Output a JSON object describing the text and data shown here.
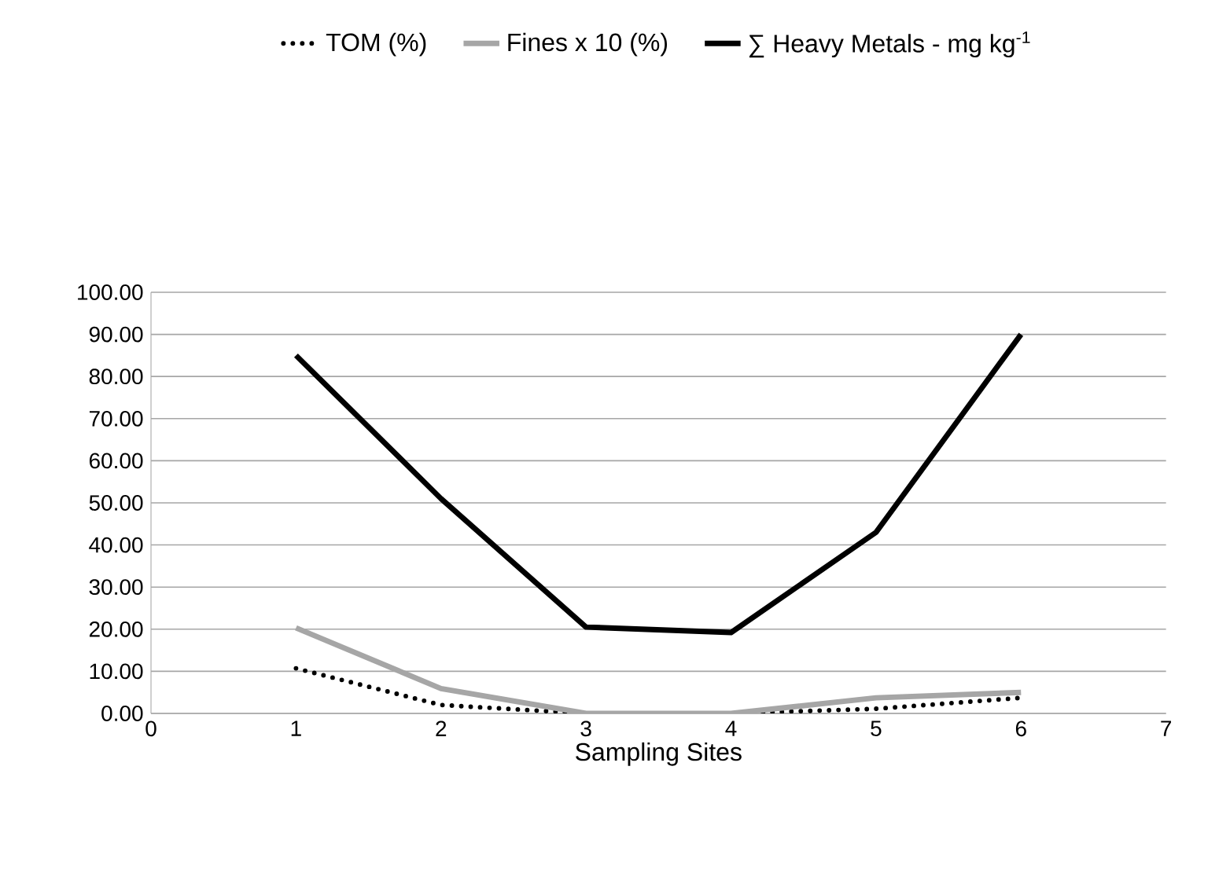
{
  "chart_data": {
    "type": "line",
    "xlabel": "Sampling Sites",
    "x": [
      1,
      2,
      3,
      4,
      5,
      6
    ],
    "series": [
      {
        "name": "TOM (%)",
        "color": "#000000",
        "line_style": "dotted",
        "values": [
          10.7,
          2.0,
          0,
          0,
          1.1,
          3.7
        ]
      },
      {
        "name": "Fines x 10 (%)",
        "color": "#a6a6a6",
        "line_style": "solid",
        "values": [
          20.3,
          5.9,
          0,
          0,
          3.7,
          5.0
        ]
      },
      {
        "name": "∑ Heavy Metals - mg kg$^{-1}$",
        "color": "#000000",
        "line_style": "solid",
        "values": [
          85,
          51,
          20.5,
          19.2,
          43,
          90
        ]
      }
    ],
    "xlim": [
      0,
      7
    ],
    "xticks": [
      0,
      1,
      2,
      3,
      4,
      5,
      6,
      7
    ],
    "ylim": [
      0,
      100
    ],
    "yticks": [
      {
        "value": 0,
        "label": "0.00"
      },
      {
        "value": 10,
        "label": "10.00"
      },
      {
        "value": 20,
        "label": "20.00"
      },
      {
        "value": 30,
        "label": "30.00"
      },
      {
        "value": 40,
        "label": "40.00"
      },
      {
        "value": 50,
        "label": "50.00"
      },
      {
        "value": 60,
        "label": "60.00"
      },
      {
        "value": 70,
        "label": "70.00"
      },
      {
        "value": 80,
        "label": "80.00"
      },
      {
        "value": 90,
        "label": "90.00"
      },
      {
        "value": 100,
        "label": "100.00"
      }
    ],
    "grid": "y",
    "legend": "top",
    "marker": "none"
  }
}
